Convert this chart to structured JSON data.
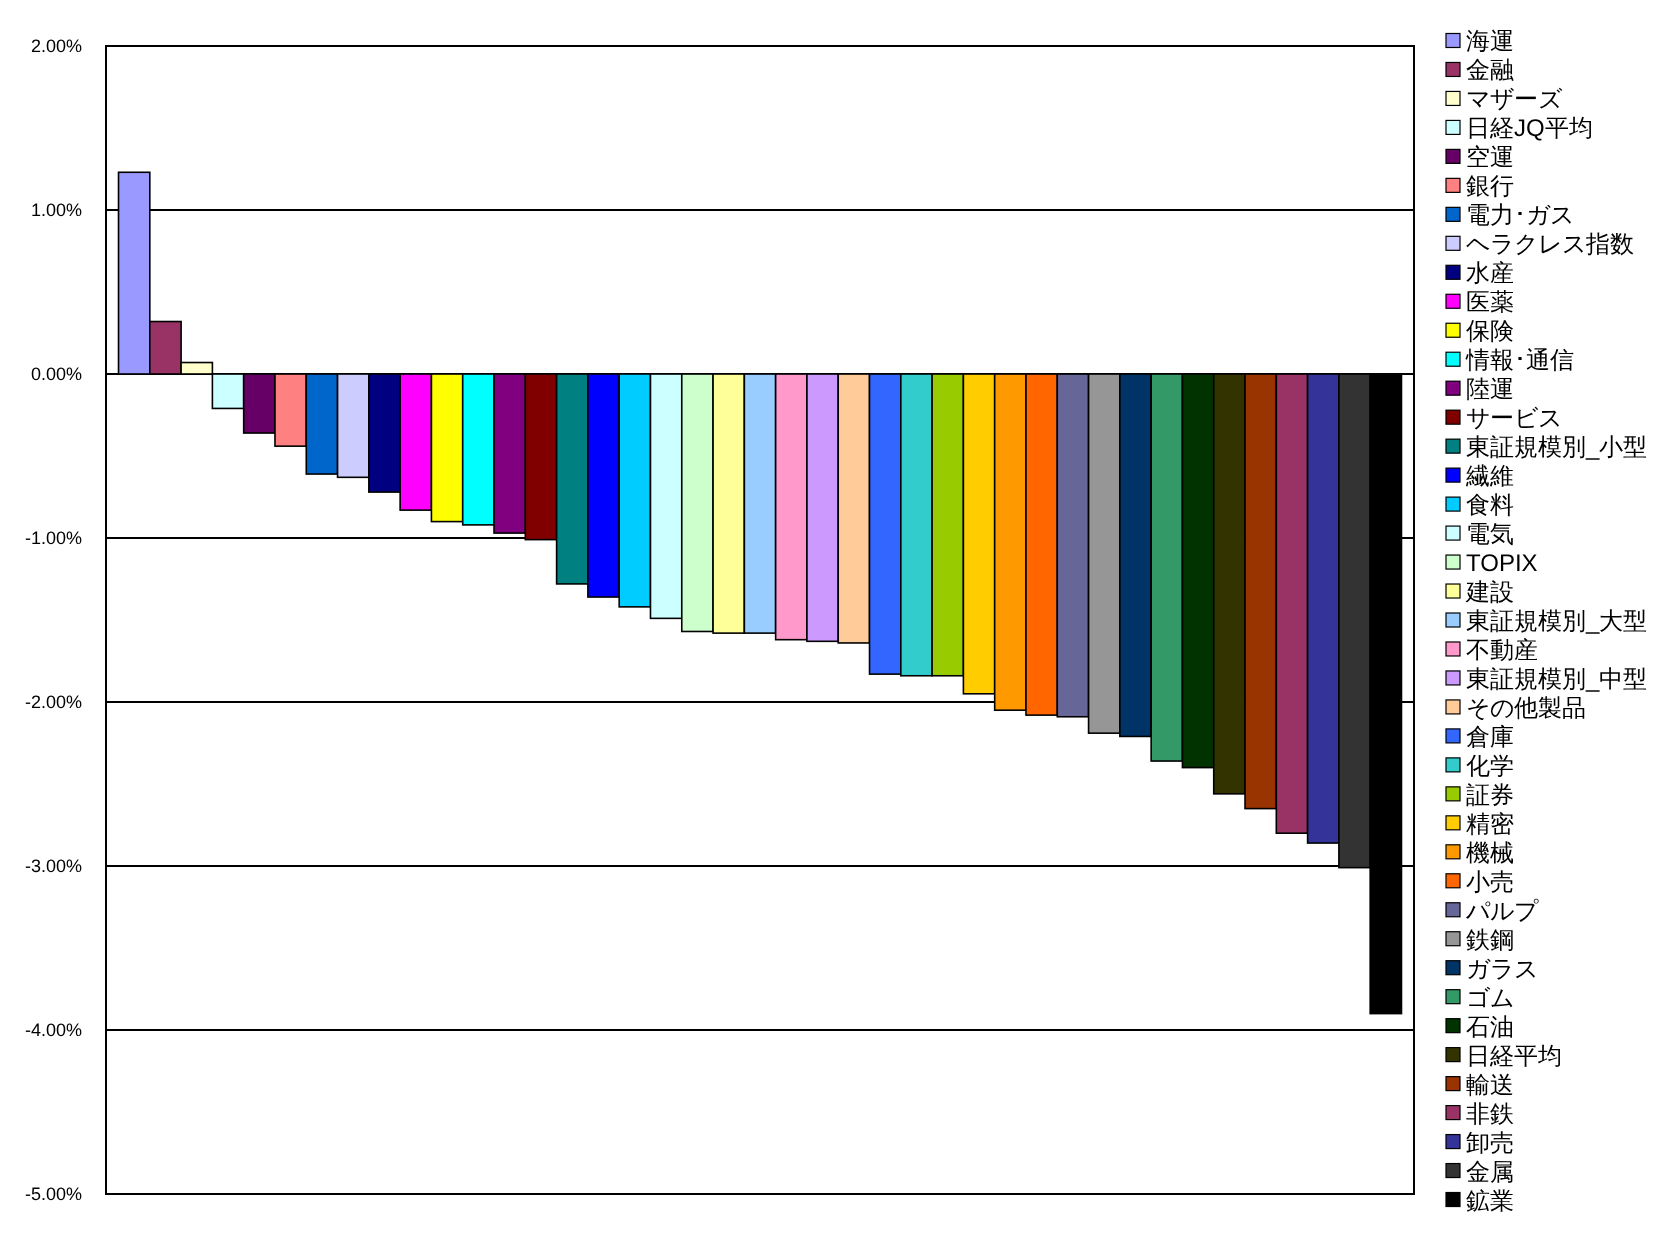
{
  "chart_data": {
    "type": "bar",
    "categories": [
      null
    ],
    "ylim": [
      -5,
      2
    ],
    "yticks": [
      {
        "value": -5,
        "label": "-5.00%"
      },
      {
        "value": -4,
        "label": "-4.00%"
      },
      {
        "value": -3,
        "label": "-3.00%"
      },
      {
        "value": -2,
        "label": "-2.00%"
      },
      {
        "value": -1,
        "label": "-1.00%"
      },
      {
        "value": 0,
        "label": "0.00%"
      },
      {
        "value": 1,
        "label": "1.00%"
      },
      {
        "value": 2,
        "label": "2.00%"
      }
    ],
    "grid": "y",
    "legend": "right",
    "series": [
      {
        "name": "海運",
        "color": "#9999ff",
        "values": [
          1.23
        ]
      },
      {
        "name": "金融",
        "color": "#993366",
        "values": [
          0.32
        ]
      },
      {
        "name": "マザーズ",
        "color": "#ffffcc",
        "values": [
          0.07
        ]
      },
      {
        "name": "日経JQ平均",
        "color": "#ccffff",
        "values": [
          -0.21
        ]
      },
      {
        "name": "空運",
        "color": "#660066",
        "values": [
          -0.36
        ]
      },
      {
        "name": "銀行",
        "color": "#ff8080",
        "values": [
          -0.44
        ]
      },
      {
        "name": "電力･ガス",
        "color": "#0066cc",
        "values": [
          -0.61
        ]
      },
      {
        "name": "ヘラクレス指数",
        "color": "#ccccff",
        "values": [
          -0.63
        ]
      },
      {
        "name": "水産",
        "color": "#000080",
        "values": [
          -0.72
        ]
      },
      {
        "name": "医薬",
        "color": "#ff00ff",
        "values": [
          -0.83
        ]
      },
      {
        "name": "保険",
        "color": "#ffff00",
        "values": [
          -0.9
        ]
      },
      {
        "name": "情報･通信",
        "color": "#00ffff",
        "values": [
          -0.92
        ]
      },
      {
        "name": "陸運",
        "color": "#800080",
        "values": [
          -0.97
        ]
      },
      {
        "name": "サービス",
        "color": "#800000",
        "values": [
          -1.01
        ]
      },
      {
        "name": "東証規模別_小型",
        "color": "#008080",
        "values": [
          -1.28
        ]
      },
      {
        "name": "繊維",
        "color": "#0000ff",
        "values": [
          -1.36
        ]
      },
      {
        "name": "食料",
        "color": "#00ccff",
        "values": [
          -1.42
        ]
      },
      {
        "name": "電気",
        "color": "#ccffff",
        "values": [
          -1.49
        ]
      },
      {
        "name": "TOPIX",
        "color": "#ccffcc",
        "values": [
          -1.57
        ]
      },
      {
        "name": "建設",
        "color": "#ffff99",
        "values": [
          -1.58
        ]
      },
      {
        "name": "東証規模別_大型",
        "color": "#99ccff",
        "values": [
          -1.58
        ]
      },
      {
        "name": "不動産",
        "color": "#ff99cc",
        "values": [
          -1.62
        ]
      },
      {
        "name": "東証規模別_中型",
        "color": "#cc99ff",
        "values": [
          -1.63
        ]
      },
      {
        "name": "その他製品",
        "color": "#ffcc99",
        "values": [
          -1.64
        ]
      },
      {
        "name": "倉庫",
        "color": "#3366ff",
        "values": [
          -1.83
        ]
      },
      {
        "name": "化学",
        "color": "#33cccc",
        "values": [
          -1.84
        ]
      },
      {
        "name": "証券",
        "color": "#99cc00",
        "values": [
          -1.84
        ]
      },
      {
        "name": "精密",
        "color": "#ffcc00",
        "values": [
          -1.95
        ]
      },
      {
        "name": "機械",
        "color": "#ff9900",
        "values": [
          -2.05
        ]
      },
      {
        "name": "小売",
        "color": "#ff6600",
        "values": [
          -2.08
        ]
      },
      {
        "name": "パルプ",
        "color": "#666699",
        "values": [
          -2.09
        ]
      },
      {
        "name": "鉄鋼",
        "color": "#969696",
        "values": [
          -2.19
        ]
      },
      {
        "name": "ガラス",
        "color": "#003366",
        "values": [
          -2.21
        ]
      },
      {
        "name": "ゴム",
        "color": "#339966",
        "values": [
          -2.36
        ]
      },
      {
        "name": "石油",
        "color": "#003300",
        "values": [
          -2.4
        ]
      },
      {
        "name": "日経平均",
        "color": "#333300",
        "values": [
          -2.56
        ]
      },
      {
        "name": "輸送",
        "color": "#993300",
        "values": [
          -2.65
        ]
      },
      {
        "name": "非鉄",
        "color": "#993366",
        "values": [
          -2.8
        ]
      },
      {
        "name": "卸売",
        "color": "#333399",
        "values": [
          -2.86
        ]
      },
      {
        "name": "金属",
        "color": "#333333",
        "values": [
          -3.01
        ]
      },
      {
        "name": "鉱業",
        "color": "#000000",
        "values": [
          -3.9
        ]
      }
    ]
  }
}
